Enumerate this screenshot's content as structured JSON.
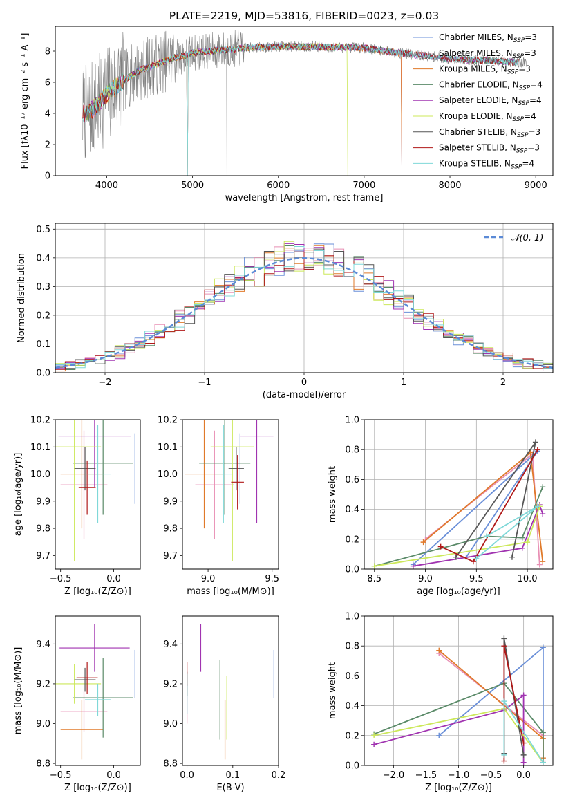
{
  "figure_title": "PLATE=2219, MJD=53816, FIBERID=0023, z=0.03",
  "colors": {
    "series": [
      "#6a8fd8",
      "#e88fb4",
      "#e07a2a",
      "#5a8a68",
      "#a033b0",
      "#cce85a",
      "#555555",
      "#b01818",
      "#7fd8d8"
    ],
    "gray": "#7f7f7f",
    "normal_curve": "#5b8ad6",
    "grid": "#b0b0b0"
  },
  "chart_data": [
    {
      "id": "spectrum",
      "type": "line",
      "xlabel": "wavelength [Angstrom, rest frame]",
      "ylabel": "Flux [fλ10⁻¹⁷ erg cm⁻² s⁻¹ A⁻¹]",
      "xlim": [
        3400,
        9200
      ],
      "ylim": [
        0,
        9.6
      ],
      "xticks": [
        4000,
        5000,
        6000,
        7000,
        8000,
        9000
      ],
      "yticks": [
        0,
        2,
        4,
        6,
        8
      ],
      "grid": false,
      "legend_position": "top-right",
      "legend": [
        "Chabrier MILES, N_SSP=3",
        "Salpeter MILES, N_SSP=3",
        "Kroupa MILES, N_SSP=3",
        "Chabrier ELODIE, N_SSP=4",
        "Salpeter ELODIE, N_SSP=4",
        "Kroupa ELODIE, N_SSP=4",
        "Chabrier STELIB, N_SSP=3",
        "Salpeter STELIB, N_SSP=3",
        "Kroupa STELIB, N_SSP=4"
      ],
      "continuum_x": [
        3700,
        3800,
        3900,
        4000,
        4100,
        4200,
        4300,
        4400,
        4500,
        4600,
        4700,
        4800,
        4900,
        5000,
        5200,
        5400,
        5600,
        5800,
        6000,
        6200,
        6400,
        6600,
        6800,
        7000,
        7200,
        7400,
        7600,
        7800,
        8000,
        8200,
        8400,
        8600,
        8800,
        9000
      ],
      "continuum_y": [
        3.9,
        4.1,
        4.6,
        5.2,
        5.7,
        6.1,
        6.5,
        6.8,
        7.0,
        7.2,
        7.4,
        7.6,
        7.7,
        7.9,
        8.0,
        8.1,
        8.2,
        8.25,
        8.3,
        8.3,
        8.3,
        8.25,
        8.25,
        8.2,
        8.05,
        7.9,
        7.75,
        7.65,
        7.5,
        7.45,
        7.4,
        7.35,
        7.3,
        7.2
      ]
    },
    {
      "id": "residuals",
      "type": "line",
      "xlabel": "(data-model)/error",
      "ylabel": "Normed distribution",
      "xlim": [
        -2.5,
        2.5
      ],
      "ylim": [
        0,
        0.52
      ],
      "xticks": [
        -2,
        -1,
        0,
        1,
        2
      ],
      "xtick_labels": [
        "−2",
        "−1",
        "0",
        "1",
        "2"
      ],
      "yticks": [
        0.0,
        0.1,
        0.2,
        0.3,
        0.4,
        0.5
      ],
      "grid": true,
      "legend_position": "top-right",
      "legend": [
        "𝒩(0, 1)"
      ],
      "bin_width": 0.1
    },
    {
      "id": "age_vs_Z",
      "type": "scatter",
      "xlabel": "Z [log₁₀(Z/Z⊙)]",
      "ylabel": "age  [log₁₀(age/yr)]",
      "xlim": [
        -0.55,
        0.25
      ],
      "ylim": [
        9.65,
        10.2
      ],
      "xticks": [
        -0.5,
        0.0
      ],
      "xtick_labels": [
        "−0.5",
        "0.0"
      ],
      "yticks": [
        9.7,
        9.8,
        9.9,
        10.0,
        10.1,
        10.2
      ],
      "points": [
        {
          "x": 0.2,
          "y": 10.02,
          "xerr": 0.0,
          "yerr": 0.13
        },
        {
          "x": -0.28,
          "y": 9.96,
          "xerr": 0.22,
          "yerr": 0.2
        },
        {
          "x": -0.3,
          "y": 10.0,
          "xerr": 0.2,
          "yerr": 0.2
        },
        {
          "x": -0.1,
          "y": 10.04,
          "xerr": 0.28,
          "yerr": 0.19
        },
        {
          "x": -0.18,
          "y": 10.14,
          "xerr": 0.34,
          "yerr": 0.19
        },
        {
          "x": -0.37,
          "y": 10.1,
          "xerr": 0.25,
          "yerr": 0.42
        },
        {
          "x": -0.27,
          "y": 10.02,
          "xerr": 0.1,
          "yerr": 0.08
        },
        {
          "x": -0.25,
          "y": 9.95,
          "xerr": 0.08,
          "yerr": 0.1
        },
        {
          "x": -0.15,
          "y": 10.0,
          "xerr": 0.12,
          "yerr": 0.18
        }
      ]
    },
    {
      "id": "age_vs_mass",
      "type": "scatter",
      "xlabel": "mass [log₁₀(M/M⊙)]",
      "ylabel": "",
      "xlim": [
        8.8,
        9.55
      ],
      "ylim": [
        9.65,
        10.2
      ],
      "xticks": [
        9.0,
        9.5
      ],
      "yticks": [
        9.7,
        9.8,
        9.9,
        10.0,
        10.1,
        10.2
      ],
      "points": [
        {
          "x": 9.25,
          "y": 10.02,
          "xerr": 0.0,
          "yerr": 0.13
        },
        {
          "x": 9.05,
          "y": 9.96,
          "xerr": 0.15,
          "yerr": 0.2
        },
        {
          "x": 8.97,
          "y": 10.0,
          "xerr": 0.15,
          "yerr": 0.2
        },
        {
          "x": 9.13,
          "y": 10.04,
          "xerr": 0.2,
          "yerr": 0.19
        },
        {
          "x": 9.38,
          "y": 10.14,
          "xerr": 0.13,
          "yerr": 0.32
        },
        {
          "x": 9.19,
          "y": 10.1,
          "xerr": 0.17,
          "yerr": 0.42
        },
        {
          "x": 9.22,
          "y": 10.02,
          "xerr": 0.06,
          "yerr": 0.08
        },
        {
          "x": 9.23,
          "y": 9.97,
          "xerr": 0.05,
          "yerr": 0.1
        },
        {
          "x": 9.12,
          "y": 10.0,
          "xerr": 0.07,
          "yerr": 0.18
        }
      ]
    },
    {
      "id": "weight_vs_age",
      "type": "line",
      "xlabel": "age  [log₁₀(age/yr)]",
      "ylabel": "mass weight",
      "xlim": [
        8.4,
        10.25
      ],
      "ylim": [
        0,
        1.0
      ],
      "xticks": [
        8.5,
        9.0,
        9.5,
        10.0
      ],
      "yticks": [
        0.0,
        0.2,
        0.4,
        0.6,
        0.8,
        1.0
      ],
      "grid": true,
      "series": [
        {
          "x": [
            9.4,
            10.1,
            8.88
          ],
          "y": [
            0.08,
            0.79,
            0.03
          ]
        },
        {
          "x": [
            9.0,
            10.05,
            10.12
          ],
          "y": [
            0.2,
            0.77,
            0.03
          ]
        },
        {
          "x": [
            8.98,
            10.03,
            10.15
          ],
          "y": [
            0.18,
            0.78,
            0.05
          ]
        },
        {
          "x": [
            8.5,
            9.6,
            9.95,
            10.15
          ],
          "y": [
            0.02,
            0.22,
            0.21,
            0.55
          ]
        },
        {
          "x": [
            8.88,
            9.95,
            10.12,
            10.15
          ],
          "y": [
            0.02,
            0.14,
            0.43,
            0.37
          ]
        },
        {
          "x": [
            8.5,
            10.0,
            10.12
          ],
          "y": [
            0.02,
            0.18,
            0.42
          ]
        },
        {
          "x": [
            9.3,
            10.08,
            9.85
          ],
          "y": [
            0.08,
            0.85,
            0.08
          ]
        },
        {
          "x": [
            9.15,
            9.47,
            10.1
          ],
          "y": [
            0.15,
            0.05,
            0.8
          ]
        },
        {
          "x": [
            9.5,
            10.1,
            9.6
          ],
          "y": [
            0.07,
            0.42,
            0.22
          ]
        }
      ]
    },
    {
      "id": "mass_vs_Z",
      "type": "scatter",
      "xlabel": "Z [log₁₀(Z/Z⊙)]",
      "ylabel": "mass [log₁₀(M/M⊙)]",
      "xlim": [
        -0.55,
        0.25
      ],
      "ylim": [
        8.79,
        9.54
      ],
      "xticks": [
        -0.5,
        0.0
      ],
      "xtick_labels": [
        "−0.5",
        "0.0"
      ],
      "yticks": [
        8.8,
        9.0,
        9.2,
        9.4
      ],
      "points": [
        {
          "x": 0.2,
          "y": 9.25,
          "xerr": 0.0,
          "yerr": 0.12
        },
        {
          "x": -0.28,
          "y": 9.06,
          "xerr": 0.22,
          "yerr": 0.1
        },
        {
          "x": -0.3,
          "y": 8.97,
          "xerr": 0.2,
          "yerr": 0.15
        },
        {
          "x": -0.1,
          "y": 9.13,
          "xerr": 0.28,
          "yerr": 0.2
        },
        {
          "x": -0.18,
          "y": 9.38,
          "xerr": 0.33,
          "yerr": 0.12
        },
        {
          "x": -0.37,
          "y": 9.2,
          "xerr": 0.25,
          "yerr": 0.1
        },
        {
          "x": -0.27,
          "y": 9.22,
          "xerr": 0.1,
          "yerr": 0.06
        },
        {
          "x": -0.25,
          "y": 9.23,
          "xerr": 0.1,
          "yerr": 0.08
        },
        {
          "x": -0.15,
          "y": 9.12,
          "xerr": 0.12,
          "yerr": 0.08
        }
      ]
    },
    {
      "id": "mass_vs_ebv",
      "type": "scatter",
      "xlabel": "E(B-V)",
      "ylabel": "",
      "xlim": [
        -0.01,
        0.2
      ],
      "ylim": [
        8.79,
        9.54
      ],
      "xticks": [
        0.0,
        0.1,
        0.2
      ],
      "yticks": [
        8.8,
        9.0,
        9.2,
        9.4
      ],
      "points": [
        {
          "x": 0.19,
          "y": 9.25,
          "xerr": 0.0,
          "yerr": 0.12
        },
        {
          "x": 0.0,
          "y": 9.1,
          "xerr": 0.0,
          "yerr": 0.1
        },
        {
          "x": 0.083,
          "y": 8.97,
          "xerr": 0.0,
          "yerr": 0.15
        },
        {
          "x": 0.072,
          "y": 9.12,
          "xerr": 0.0,
          "yerr": 0.2
        },
        {
          "x": 0.03,
          "y": 9.38,
          "xerr": 0.0,
          "yerr": 0.12
        },
        {
          "x": 0.087,
          "y": 9.08,
          "xerr": 0.0,
          "yerr": 0.16
        },
        {
          "x": 0.0,
          "y": 9.2,
          "xerr": 0.0,
          "yerr": 0.06
        },
        {
          "x": 0.0,
          "y": 9.25,
          "xerr": 0.0,
          "yerr": 0.06
        },
        {
          "x": 0.0,
          "y": 9.15,
          "xerr": 0.0,
          "yerr": 0.1
        }
      ]
    },
    {
      "id": "weight_vs_Z",
      "type": "line",
      "xlabel": "Z [log₁₀(Z/Z⊙)]",
      "ylabel": "mass weight",
      "xlim": [
        -2.45,
        0.45
      ],
      "ylim": [
        0,
        1.0
      ],
      "xticks": [
        -2.0,
        -1.5,
        -1.0,
        -0.5,
        0.0
      ],
      "xtick_labels": [
        "−2.0",
        "−1.5",
        "−1.0",
        "−0.5",
        "0.0"
      ],
      "yticks": [
        0.0,
        0.2,
        0.4,
        0.6,
        0.8,
        1.0
      ],
      "grid": true,
      "series": [
        {
          "x": [
            -1.3,
            0.3,
            0.3
          ],
          "y": [
            0.2,
            0.79,
            0.02
          ]
        },
        {
          "x": [
            -1.3,
            0.3,
            0.3
          ],
          "y": [
            0.75,
            0.2,
            0.03
          ]
        },
        {
          "x": [
            -1.3,
            0.3,
            0.3
          ],
          "y": [
            0.77,
            0.18,
            0.05
          ]
        },
        {
          "x": [
            -2.3,
            -0.3,
            0.3,
            0.3
          ],
          "y": [
            0.21,
            0.55,
            0.22,
            0.02
          ]
        },
        {
          "x": [
            -2.3,
            -0.3,
            0.0,
            0.0
          ],
          "y": [
            0.14,
            0.37,
            0.47,
            0.02
          ]
        },
        {
          "x": [
            -2.3,
            -0.3,
            0.3
          ],
          "y": [
            0.2,
            0.38,
            0.02
          ]
        },
        {
          "x": [
            -0.3,
            -0.3,
            0.0
          ],
          "y": [
            0.08,
            0.85,
            0.07
          ]
        },
        {
          "x": [
            -0.3,
            -0.3,
            0.0
          ],
          "y": [
            0.03,
            0.8,
            0.15
          ]
        },
        {
          "x": [
            -0.3,
            -0.3,
            0.3
          ],
          "y": [
            0.07,
            0.43,
            0.02
          ]
        }
      ]
    }
  ]
}
